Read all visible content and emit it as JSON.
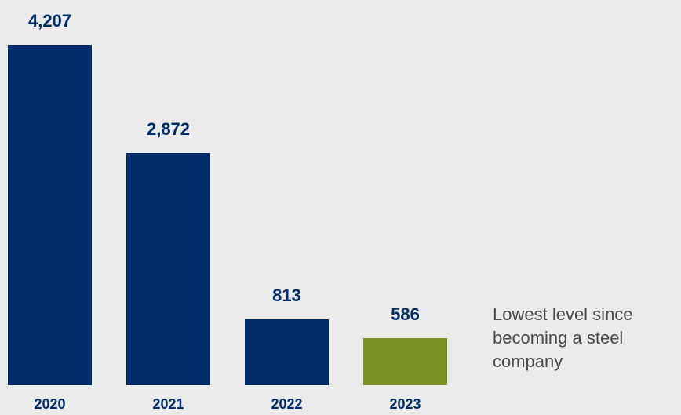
{
  "chart_data": {
    "type": "bar",
    "categories": [
      "2020",
      "2021",
      "2022",
      "2023"
    ],
    "values": [
      4207,
      2872,
      813,
      586
    ],
    "value_labels": [
      "4,207",
      "2,872",
      "813",
      "586"
    ],
    "bar_colors": [
      "#002d6a",
      "#002d6a",
      "#002d6a",
      "#7a9126"
    ],
    "label_color": "#002d6a",
    "title": "",
    "xlabel": "",
    "ylabel": "",
    "ylim": [
      0,
      4207
    ],
    "grid": false,
    "legend": "none",
    "annotation": "Lowest level since becoming a steel company"
  }
}
